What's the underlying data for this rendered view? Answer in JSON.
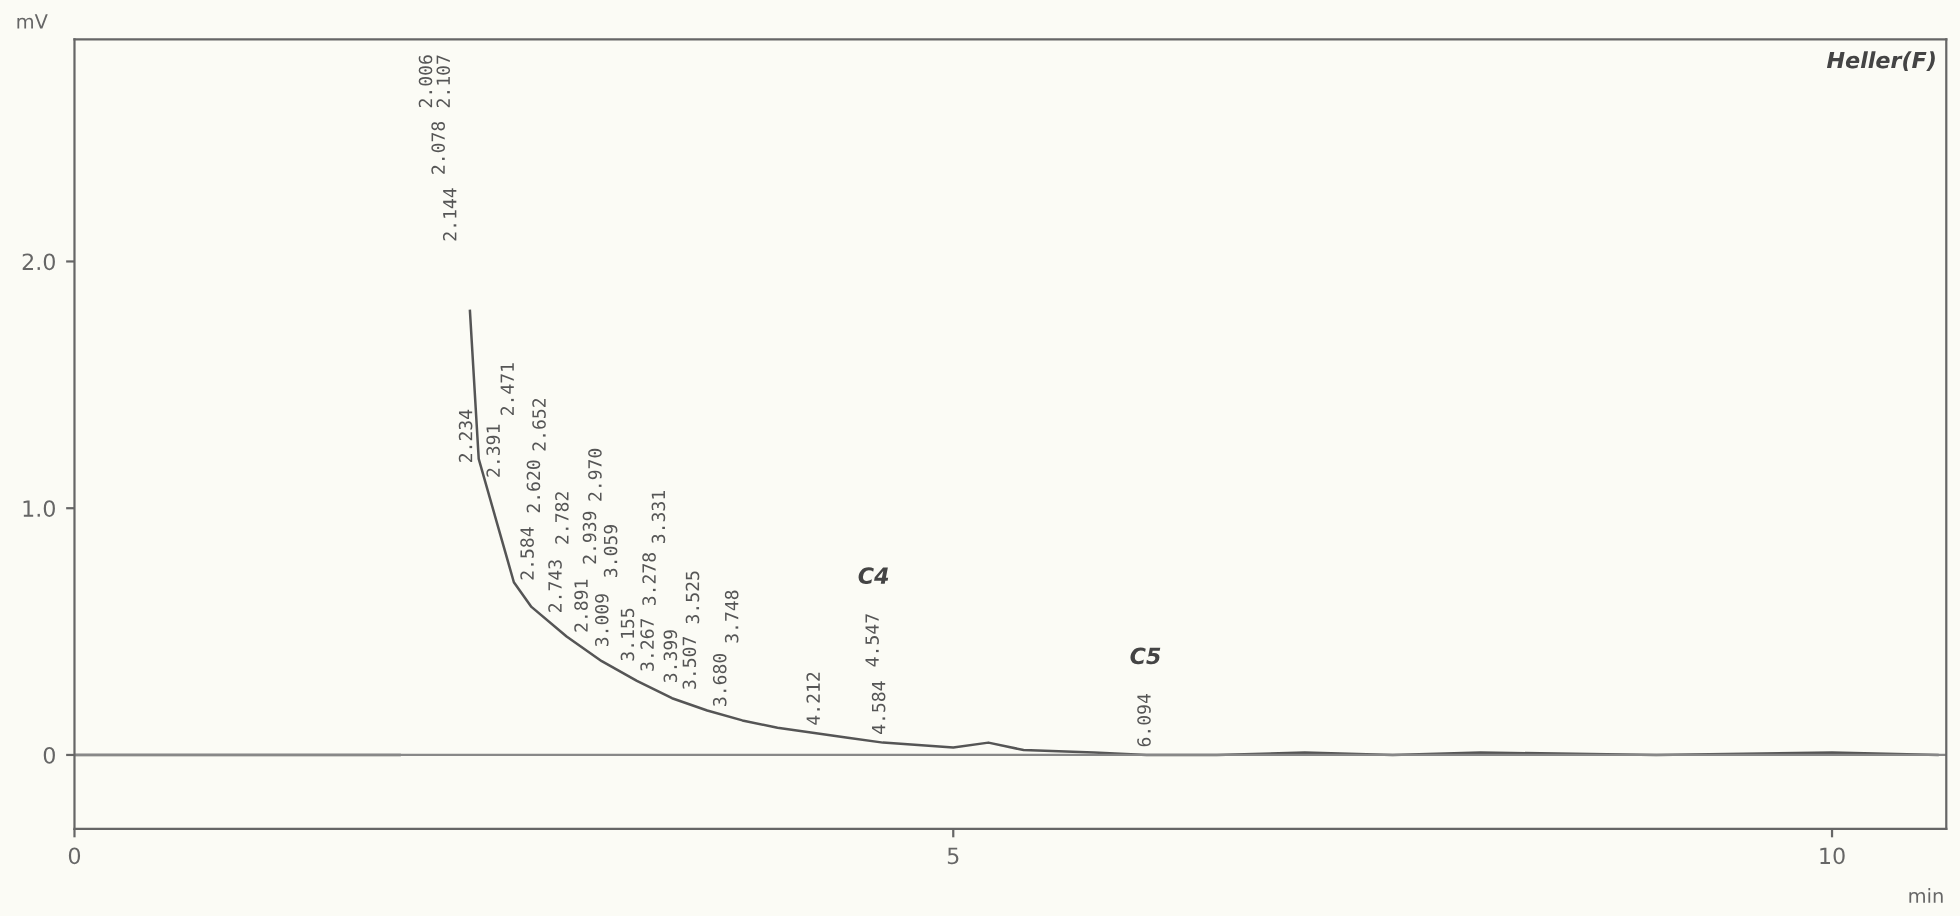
{
  "chart_data": {
    "type": "line",
    "xlabel": "min",
    "ylabel": "mV",
    "x": [
      0,
      1.85,
      1.9,
      1.96,
      2.0,
      2.1,
      2.2,
      2.25,
      2.3,
      2.4,
      2.5,
      2.6,
      2.8,
      3.0,
      3.2,
      3.4,
      3.6,
      3.8,
      4.0,
      4.2,
      4.4,
      4.6,
      4.8,
      5.0,
      5.2,
      5.4,
      5.8,
      6.1,
      6.5,
      7.0,
      7.5,
      8.0,
      9.0,
      10.0,
      10.6
    ],
    "series": [
      {
        "color": "#555555",
        "values": [
          0,
          0,
          null,
          null,
          null,
          null,
          null,
          1.8,
          1.2,
          0.95,
          0.7,
          0.6,
          0.48,
          0.38,
          0.3,
          0.23,
          0.18,
          0.14,
          0.11,
          0.09,
          0.07,
          0.05,
          0.04,
          0.03,
          0.05,
          0.02,
          0.01,
          0.0,
          0.0,
          0.01,
          0.0,
          0.01,
          0.0,
          0.01,
          0.0
        ]
      }
    ],
    "xlim": [
      0,
      10.65
    ],
    "ylim": [
      -0.3,
      2.9
    ],
    "xticks": [
      0,
      5,
      10
    ],
    "yticks": [
      0,
      {
        "value": 1,
        "label": "1.0"
      },
      {
        "value": 2,
        "label": "2.0"
      }
    ],
    "ref_lines": [
      {
        "axis": "y",
        "value": 0,
        "color": "#888888"
      }
    ],
    "grid": false,
    "legend": false,
    "marker": "none",
    "line_style": "solid",
    "annotations": [
      {
        "text": "Heller(F)"
      },
      "2.006",
      "2.078",
      "2.107",
      "2.144",
      "2.234",
      "2.391",
      "2.471",
      "2.584",
      "2.620",
      "2.652",
      "2.743",
      "2.782",
      "2.891",
      "2.939",
      "2.970",
      "3.009",
      "3.059",
      "3.155",
      "3.267",
      "3.278",
      "3.331",
      "3.399",
      "3.507",
      "3.525",
      "3.680",
      "3.748",
      "4.212",
      "4.584",
      "4.547",
      "C4",
      "6.094",
      "C5"
    ]
  }
}
